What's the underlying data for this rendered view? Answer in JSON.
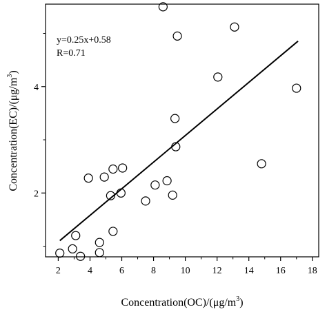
{
  "chart_data": {
    "type": "scatter",
    "xlabel": "Concentration(OC)/(μg/m",
    "xlabel_sup": "3",
    "xlabel_end": ")",
    "ylabel": "Concentration(EC)/(μg/m",
    "ylabel_sup": "3",
    "ylabel_end": ")",
    "xlim": [
      1.2,
      18.4
    ],
    "ylim": [
      0.8,
      5.55
    ],
    "xticks": [
      "2",
      "4",
      "6",
      "8",
      "10",
      "12",
      "14",
      "16",
      "18"
    ],
    "yticks": [
      "2",
      "4"
    ],
    "grid": false,
    "annotations": {
      "equation": "y=0.25x+0.58",
      "r": "R=0.71"
    },
    "fit": {
      "slope": 0.25,
      "intercept": 0.58,
      "x_start": 2.1,
      "x_end": 17.1
    },
    "points": [
      {
        "x": 2.1,
        "y": 0.87
      },
      {
        "x": 2.9,
        "y": 0.95
      },
      {
        "x": 3.1,
        "y": 1.2
      },
      {
        "x": 3.4,
        "y": 0.81
      },
      {
        "x": 3.9,
        "y": 2.28
      },
      {
        "x": 4.6,
        "y": 1.07
      },
      {
        "x": 4.6,
        "y": 0.88
      },
      {
        "x": 4.9,
        "y": 2.3
      },
      {
        "x": 5.3,
        "y": 1.95
      },
      {
        "x": 5.45,
        "y": 2.45
      },
      {
        "x": 5.45,
        "y": 1.28
      },
      {
        "x": 5.95,
        "y": 2.0
      },
      {
        "x": 6.05,
        "y": 2.47
      },
      {
        "x": 7.5,
        "y": 1.85
      },
      {
        "x": 8.1,
        "y": 2.15
      },
      {
        "x": 8.85,
        "y": 2.23
      },
      {
        "x": 9.2,
        "y": 1.96
      },
      {
        "x": 9.4,
        "y": 2.87
      },
      {
        "x": 9.35,
        "y": 3.4
      },
      {
        "x": 8.6,
        "y": 5.5
      },
      {
        "x": 9.5,
        "y": 4.95
      },
      {
        "x": 12.05,
        "y": 4.18
      },
      {
        "x": 13.1,
        "y": 5.12
      },
      {
        "x": 14.8,
        "y": 2.55
      },
      {
        "x": 17.0,
        "y": 3.97
      }
    ]
  }
}
